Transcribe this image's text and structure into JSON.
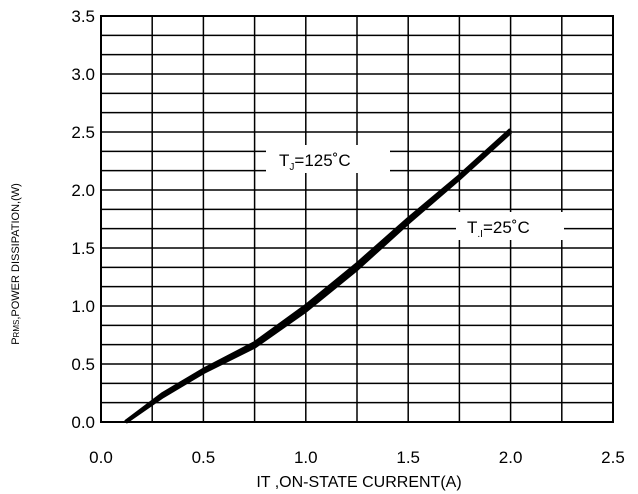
{
  "chart_data": {
    "type": "line",
    "xlabel": "IT ,ON-STATE CURRENT(A)",
    "ylabel": {
      "main": "P",
      "sub": "RMS",
      "rest": ",POWER DISSIPATION,(W)"
    },
    "xlim": [
      0.0,
      2.5
    ],
    "ylim": [
      0.0,
      3.5
    ],
    "x_ticks": [
      "0.0",
      "0.5",
      "1.0",
      "1.5",
      "2.0",
      "2.5"
    ],
    "y_ticks": [
      "0.0",
      "0.5",
      "1.0",
      "1.5",
      "2.0",
      "2.5",
      "3.0",
      "3.5"
    ],
    "grid": true,
    "series": [
      {
        "name": "TJ=125°C",
        "x": [
          0.12,
          0.3,
          0.5,
          0.75,
          1.0,
          1.25,
          1.5,
          1.75,
          2.0
        ],
        "y": [
          0.0,
          0.24,
          0.45,
          0.68,
          1.0,
          1.36,
          1.75,
          2.12,
          2.52
        ]
      },
      {
        "name": "TJ=25°C",
        "x": [
          0.12,
          0.3,
          0.5,
          0.75,
          1.0,
          1.25,
          1.5,
          1.75,
          2.0
        ],
        "y": [
          0.0,
          0.22,
          0.43,
          0.65,
          0.96,
          1.32,
          1.72,
          2.1,
          2.5
        ]
      }
    ],
    "annotations": [
      {
        "main": "T",
        "sub": "J",
        "rest": "=125˚C"
      },
      {
        "main": "T",
        "sub": ".I",
        "rest": "=25˚C"
      }
    ]
  }
}
